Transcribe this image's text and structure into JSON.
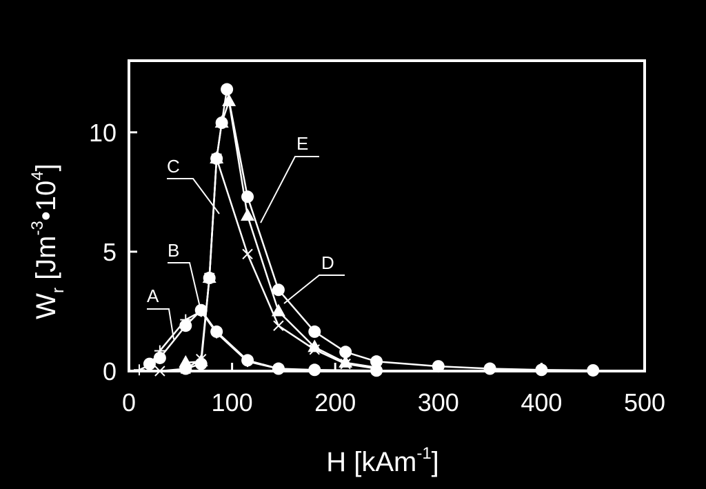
{
  "chart_data": {
    "type": "line",
    "x_label": [
      "H [kAm",
      "-1",
      "]"
    ],
    "y_label": [
      "W",
      "r",
      " [Jm",
      "-3",
      "•10",
      "4",
      "]"
    ],
    "xlim": [
      0,
      500
    ],
    "ylim": [
      0,
      13
    ],
    "xticks": [
      0,
      100,
      200,
      300,
      400,
      500
    ],
    "yticks": [
      0,
      5,
      10
    ],
    "series": [
      {
        "name": "A",
        "color": "#ffffff",
        "marker": "plus",
        "x": [
          10,
          20,
          30,
          55,
          70,
          85,
          115,
          145
        ],
        "values": [
          0.05,
          0.25,
          0.85,
          2.15,
          2.5,
          1.6,
          0.4,
          0.1
        ]
      },
      {
        "name": "B",
        "color": "#ffffff",
        "marker": "circle",
        "x": [
          20,
          30,
          55,
          70,
          85,
          115,
          145,
          180,
          240
        ],
        "values": [
          0.3,
          0.55,
          1.9,
          2.55,
          1.65,
          0.45,
          0.1,
          0.05,
          0.02
        ]
      },
      {
        "name": "C",
        "color": "#ffffff",
        "marker": "cross",
        "x": [
          30,
          55,
          70,
          78,
          85,
          115,
          145,
          180,
          210,
          240
        ],
        "values": [
          0,
          0.1,
          0.5,
          3.9,
          8.9,
          4.9,
          1.9,
          0.9,
          0.3,
          0.1
        ]
      },
      {
        "name": "D",
        "color": "#ffffff",
        "marker": "triangle",
        "x": [
          55,
          70,
          78,
          85,
          90,
          97,
          115,
          145,
          180,
          210,
          240
        ],
        "values": [
          0.35,
          0.4,
          3.9,
          8.9,
          10.4,
          11.3,
          6.5,
          2.5,
          1.0,
          0.35,
          0.15
        ]
      },
      {
        "name": "E",
        "color": "#ffffff",
        "marker": "circle",
        "x": [
          55,
          70,
          78,
          85,
          90,
          95,
          115,
          145,
          180,
          210,
          240,
          300,
          350,
          400,
          450
        ],
        "values": [
          0.1,
          0.3,
          3.9,
          8.9,
          10.4,
          11.8,
          7.3,
          3.4,
          1.65,
          0.8,
          0.4,
          0.2,
          0.1,
          0.05,
          0.03
        ]
      }
    ]
  }
}
